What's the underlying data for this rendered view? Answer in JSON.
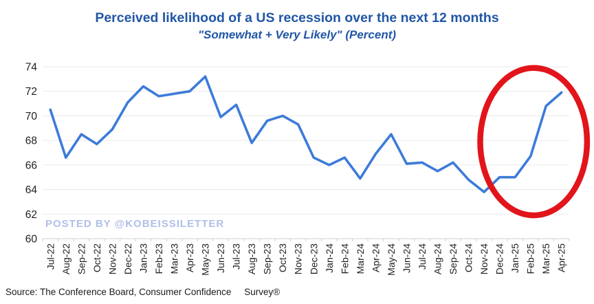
{
  "header": {
    "title": "Perceived likelihood of a US recession over the next 12 months",
    "subtitle": "\"Somewhat + Very Likely\" (Percent)"
  },
  "watermark": {
    "text": "POSTED BY @KOBEISSILETTER",
    "color": "#b0bfe8"
  },
  "footer": {
    "source": "Source: The Conference Board, Consumer Confidence     Survey®"
  },
  "colors": {
    "title_blue": "#2156a6",
    "axis_text": "#212121",
    "gridline": "#eaeaea",
    "axis_line": "#cfcfcf"
  },
  "chart_data": {
    "type": "line",
    "title": "Perceived likelihood of a US recession over the next 12 months",
    "subtitle": "\"Somewhat + Very Likely\" (Percent)",
    "categories": [
      "Jul-22",
      "Aug-22",
      "Sep-22",
      "Oct-22",
      "Nov-22",
      "Dec-22",
      "Jan-23",
      "Feb-23",
      "Mar-23",
      "Apr-23",
      "May-23",
      "Jun-23",
      "Jul-23",
      "Aug-23",
      "Sep-23",
      "Oct-23",
      "Nov-23",
      "Dec-23",
      "Jan-24",
      "Feb-24",
      "Mar-24",
      "Apr-24",
      "May-24",
      "Jun-24",
      "Jul-24",
      "Aug-24",
      "Sep-24",
      "Oct-24",
      "Nov-24",
      "Dec-24",
      "Jan-25",
      "Feb-25",
      "Mar-25",
      "Apr-25"
    ],
    "values": [
      70.5,
      66.6,
      68.5,
      67.7,
      68.9,
      71.1,
      72.4,
      71.6,
      71.8,
      72.0,
      73.2,
      69.9,
      70.9,
      67.8,
      69.6,
      70.0,
      69.3,
      66.6,
      66.0,
      66.6,
      64.9,
      66.9,
      68.5,
      66.1,
      66.2,
      65.5,
      66.2,
      64.8,
      63.8,
      65.0,
      65.0,
      66.7,
      70.8,
      71.9
    ],
    "xlabel": "",
    "ylabel": "",
    "ylim": [
      60,
      74
    ],
    "yticks": [
      60,
      62,
      64,
      66,
      68,
      70,
      72,
      74
    ],
    "grid": true,
    "legend": "none",
    "line_color": "#3c7bd9",
    "annotation": {
      "type": "ellipse",
      "highlighted_range": [
        "Dec-24",
        "Apr-25"
      ],
      "color": "#e1151b",
      "stroke_width": 8.5,
      "center_category_index": 31.2,
      "center_value": 67.9,
      "radius_categories": 3.45,
      "radius_values": 6.0
    }
  }
}
